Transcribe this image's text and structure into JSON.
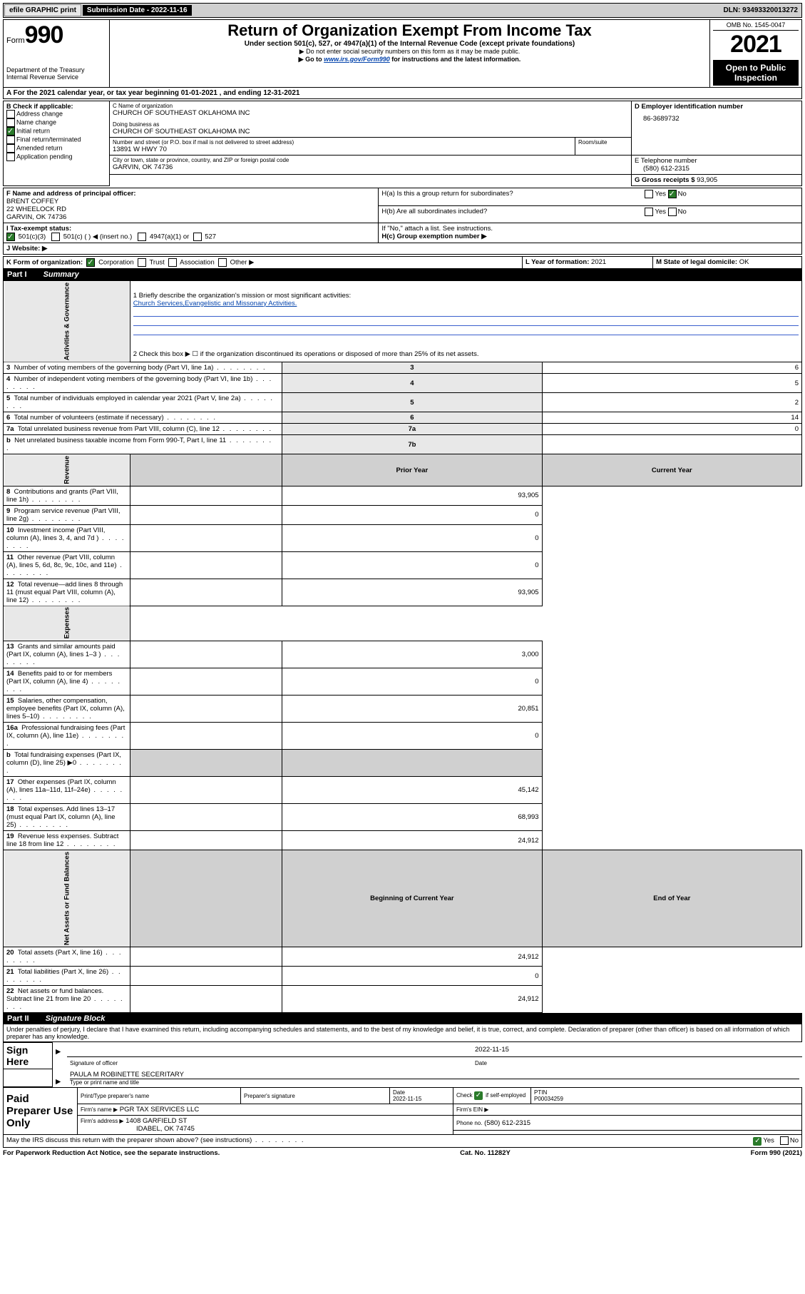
{
  "topbar": {
    "efile": "efile GRAPHIC print",
    "sub_label": "Submission Date - 2022-11-16",
    "dln": "DLN: 93493320013272"
  },
  "header": {
    "form_prefix": "Form",
    "form_number": "990",
    "dept": "Department of the Treasury",
    "irs": "Internal Revenue Service",
    "title": "Return of Organization Exempt From Income Tax",
    "subtitle": "Under section 501(c), 527, or 4947(a)(1) of the Internal Revenue Code (except private foundations)",
    "note1": "▶ Do not enter social security numbers on this form as it may be made public.",
    "note2_pre": "▶ Go to ",
    "note2_link": "www.irs.gov/Form990",
    "note2_post": " for instructions and the latest information.",
    "omb": "OMB No. 1545-0047",
    "year": "2021",
    "inspection": "Open to Public Inspection"
  },
  "rowA": {
    "text": "A For the 2021 calendar year, or tax year beginning 01-01-2021   , and ending 12-31-2021"
  },
  "boxB": {
    "title": "B Check if applicable:",
    "items": [
      "Address change",
      "Name change",
      "Initial return",
      "Final return/terminated",
      "Amended return",
      "Application pending"
    ],
    "checked_index": 2
  },
  "boxC": {
    "name_label": "C Name of organization",
    "name": "CHURCH OF SOUTHEAST OKLAHOMA INC",
    "dba_label": "Doing business as",
    "dba": "CHURCH OF SOUTHEAST OKLAHOMA INC",
    "addr_label": "Number and street (or P.O. box if mail is not delivered to street address)",
    "addr": "13891 W HWY 70",
    "room_label": "Room/suite",
    "city_label": "City or town, state or province, country, and ZIP or foreign postal code",
    "city": "GARVIN, OK  74736"
  },
  "boxD": {
    "label": "D Employer identification number",
    "value": "86-3689732"
  },
  "boxE": {
    "label": "E Telephone number",
    "value": "(580) 612-2315"
  },
  "boxG": {
    "label": "G Gross receipts $",
    "value": "93,905"
  },
  "boxF": {
    "label": "F Name and address of principal officer:",
    "name": "BRENT COFFEY",
    "addr1": "22 WHEELOCK RD",
    "addr2": "GARVIN, OK  74736"
  },
  "boxH": {
    "ha": "H(a)  Is this a group return for subordinates?",
    "ha_no": true,
    "hb": "H(b)  Are all subordinates included?",
    "hb_note": "If \"No,\" attach a list. See instructions.",
    "hc": "H(c)  Group exemption number ▶"
  },
  "rowI": {
    "label": "I   Tax-exempt status:",
    "opts": [
      "501(c)(3)",
      "501(c) (  ) ◀ (insert no.)",
      "4947(a)(1) or",
      "527"
    ],
    "checked": 0
  },
  "rowJ": {
    "label": "J   Website: ▶"
  },
  "rowK": {
    "label": "K Form of organization:",
    "opts": [
      "Corporation",
      "Trust",
      "Association",
      "Other ▶"
    ],
    "checked": 0
  },
  "rowL": {
    "label": "L Year of formation:",
    "value": "2021"
  },
  "rowM": {
    "label": "M State of legal domicile:",
    "value": "OK"
  },
  "part1": {
    "head": "Part I",
    "title": "Summary",
    "line1_label": "1  Briefly describe the organization's mission or most significant activities:",
    "line1_value": "Church Services,Evangelistic and Missonary Activities.",
    "line2": "2  Check this box ▶ ☐  if the organization discontinued its operations or disposed of more than 25% of its net assets.",
    "vlabels": {
      "gov": "Activities & Governance",
      "rev": "Revenue",
      "exp": "Expenses",
      "net": "Net Assets or Fund Balances"
    },
    "rows_gov": [
      {
        "n": "3",
        "t": "Number of voting members of the governing body (Part VI, line 1a)",
        "box": "3",
        "v": "6"
      },
      {
        "n": "4",
        "t": "Number of independent voting members of the governing body (Part VI, line 1b)",
        "box": "4",
        "v": "5"
      },
      {
        "n": "5",
        "t": "Total number of individuals employed in calendar year 2021 (Part V, line 2a)",
        "box": "5",
        "v": "2"
      },
      {
        "n": "6",
        "t": "Total number of volunteers (estimate if necessary)",
        "box": "6",
        "v": "14"
      },
      {
        "n": "7a",
        "t": "Total unrelated business revenue from Part VIII, column (C), line 12",
        "box": "7a",
        "v": "0"
      },
      {
        "n": "b",
        "t": "Net unrelated business taxable income from Form 990-T, Part I, line 11",
        "box": "7b",
        "v": ""
      }
    ],
    "col_headers": {
      "prior": "Prior Year",
      "current": "Current Year"
    },
    "rows_rev": [
      {
        "n": "8",
        "t": "Contributions and grants (Part VIII, line 1h)",
        "p": "",
        "c": "93,905"
      },
      {
        "n": "9",
        "t": "Program service revenue (Part VIII, line 2g)",
        "p": "",
        "c": "0"
      },
      {
        "n": "10",
        "t": "Investment income (Part VIII, column (A), lines 3, 4, and 7d )",
        "p": "",
        "c": "0"
      },
      {
        "n": "11",
        "t": "Other revenue (Part VIII, column (A), lines 5, 6d, 8c, 9c, 10c, and 11e)",
        "p": "",
        "c": "0"
      },
      {
        "n": "12",
        "t": "Total revenue—add lines 8 through 11 (must equal Part VIII, column (A), line 12)",
        "p": "",
        "c": "93,905"
      }
    ],
    "rows_exp": [
      {
        "n": "13",
        "t": "Grants and similar amounts paid (Part IX, column (A), lines 1–3 )",
        "p": "",
        "c": "3,000"
      },
      {
        "n": "14",
        "t": "Benefits paid to or for members (Part IX, column (A), line 4)",
        "p": "",
        "c": "0"
      },
      {
        "n": "15",
        "t": "Salaries, other compensation, employee benefits (Part IX, column (A), lines 5–10)",
        "p": "",
        "c": "20,851"
      },
      {
        "n": "16a",
        "t": "Professional fundraising fees (Part IX, column (A), line 11e)",
        "p": "",
        "c": "0"
      },
      {
        "n": "b",
        "t": "Total fundraising expenses (Part IX, column (D), line 25) ▶0",
        "p": "shaded",
        "c": "shaded"
      },
      {
        "n": "17",
        "t": "Other expenses (Part IX, column (A), lines 11a–11d, 11f–24e)",
        "p": "",
        "c": "45,142"
      },
      {
        "n": "18",
        "t": "Total expenses. Add lines 13–17 (must equal Part IX, column (A), line 25)",
        "p": "",
        "c": "68,993"
      },
      {
        "n": "19",
        "t": "Revenue less expenses. Subtract line 18 from line 12",
        "p": "",
        "c": "24,912"
      }
    ],
    "net_headers": {
      "begin": "Beginning of Current Year",
      "end": "End of Year"
    },
    "rows_net": [
      {
        "n": "20",
        "t": "Total assets (Part X, line 16)",
        "p": "",
        "c": "24,912"
      },
      {
        "n": "21",
        "t": "Total liabilities (Part X, line 26)",
        "p": "",
        "c": "0"
      },
      {
        "n": "22",
        "t": "Net assets or fund balances. Subtract line 21 from line 20",
        "p": "",
        "c": "24,912"
      }
    ]
  },
  "part2": {
    "head": "Part II",
    "title": "Signature Block",
    "declaration": "Under penalties of perjury, I declare that I have examined this return, including accompanying schedules and statements, and to the best of my knowledge and belief, it is true, correct, and complete. Declaration of preparer (other than officer) is based on all information of which preparer has any knowledge."
  },
  "sign": {
    "sign_here": "Sign Here",
    "sig_officer": "Signature of officer",
    "date_label": "Date",
    "date": "2022-11-15",
    "name": "PAULA M ROBINETTE  SECERITARY",
    "name_label": "Type or print name and title"
  },
  "preparer": {
    "title": "Paid Preparer Use Only",
    "cols": [
      "Print/Type preparer's name",
      "Preparer's signature",
      "Date",
      "",
      "PTIN"
    ],
    "date": "2022-11-15",
    "check_label": "Check",
    "self_emp": "if self-employed",
    "checked": true,
    "ptin": "P00034259",
    "firm_name_label": "Firm's name    ▶",
    "firm_name": "PGR TAX SERVICES LLC",
    "firm_ein_label": "Firm's EIN ▶",
    "firm_addr_label": "Firm's address ▶",
    "firm_addr1": "1408 GARFIELD ST",
    "firm_addr2": "IDABEL, OK  74745",
    "phone_label": "Phone no.",
    "phone": "(580) 612-2315"
  },
  "bottom": {
    "discuss": "May the IRS discuss this return with the preparer shown above? (see instructions)",
    "yes_checked": true,
    "paperwork": "For Paperwork Reduction Act Notice, see the separate instructions.",
    "cat": "Cat. No. 11282Y",
    "form": "Form 990 (2021)"
  }
}
